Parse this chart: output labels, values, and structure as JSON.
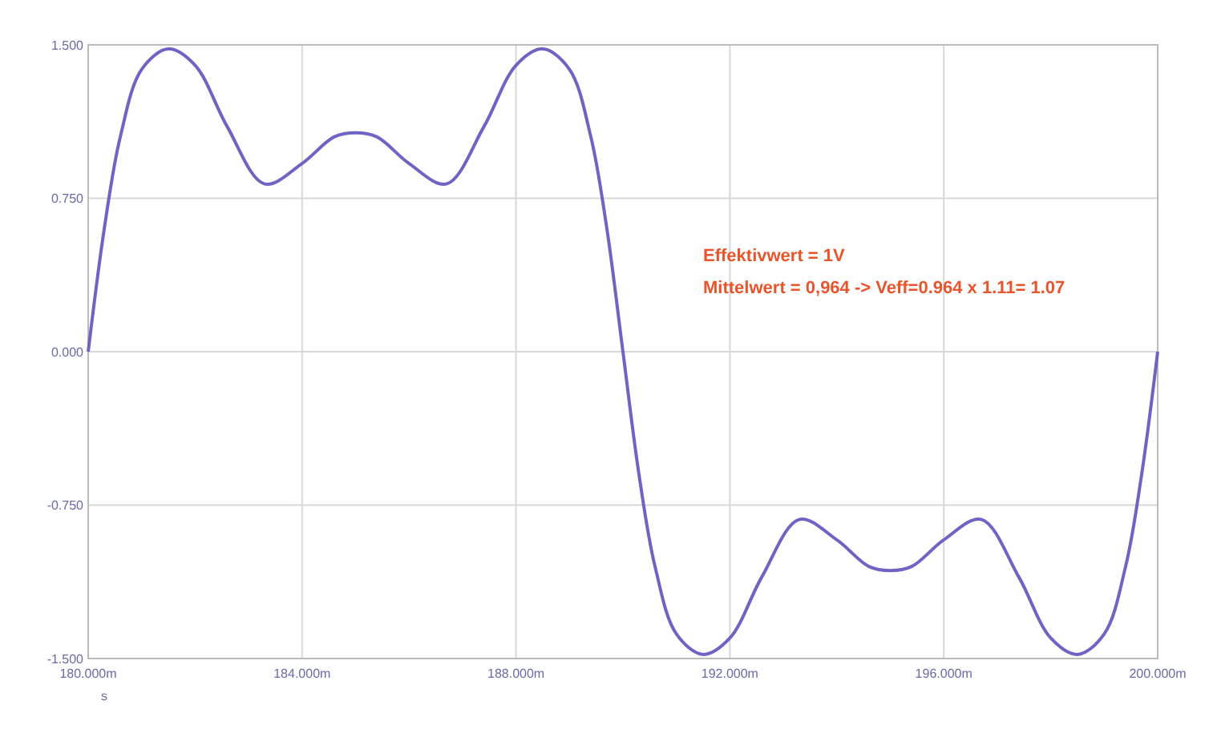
{
  "chart_data": {
    "type": "line",
    "xlabel": "s",
    "x": [
      180,
      180.3,
      180.6,
      181,
      181.5,
      182,
      182.6,
      183.3,
      184,
      184.6,
      185,
      185.4,
      186,
      186.7,
      187.4,
      188,
      188.5,
      189,
      189.4,
      189.7,
      190,
      190.3,
      190.6,
      191,
      191.5,
      192,
      192.6,
      193.3,
      194,
      194.6,
      195,
      195.4,
      196,
      196.7,
      197.4,
      198,
      198.5,
      199,
      199.4,
      199.7,
      200
    ],
    "series": [
      {
        "color": "#6f63c4",
        "values": [
          0,
          0.6,
          1.05,
          1.38,
          1.48,
          1.4,
          1.1,
          0.82,
          0.92,
          1.05,
          1.07,
          1.05,
          0.92,
          0.82,
          1.1,
          1.4,
          1.48,
          1.38,
          1.05,
          0.6,
          0,
          -0.6,
          -1.05,
          -1.38,
          -1.48,
          -1.4,
          -1.1,
          -0.82,
          -0.92,
          -1.05,
          -1.07,
          -1.05,
          -0.92,
          -0.82,
          -1.1,
          -1.4,
          -1.48,
          -1.38,
          -1.05,
          -0.6,
          0
        ]
      }
    ],
    "xlim": [
      180,
      200
    ],
    "xticks": [
      {
        "value": 180,
        "label": "180.000m"
      },
      {
        "value": 184,
        "label": "184.000m"
      },
      {
        "value": 188,
        "label": "188.000m"
      },
      {
        "value": 192,
        "label": "192.000m"
      },
      {
        "value": 196,
        "label": "196.000m"
      },
      {
        "value": 200,
        "label": "200.000m"
      }
    ],
    "ylim": [
      -1.5,
      1.5
    ],
    "yticks": [
      {
        "value": -1.5,
        "label": "-1.500"
      },
      {
        "value": -0.75,
        "label": "-0.750"
      },
      {
        "value": 0,
        "label": "0.000"
      },
      {
        "value": 0.75,
        "label": "0.750"
      },
      {
        "value": 1.5,
        "label": "1.500"
      }
    ],
    "grid": true,
    "marker": "none",
    "line_style": "solid",
    "annotations": [
      "Effektivwert = 1V",
      "Mittelwert = 0,964 -> Veff=0.964 x 1.11= 1.07"
    ]
  }
}
